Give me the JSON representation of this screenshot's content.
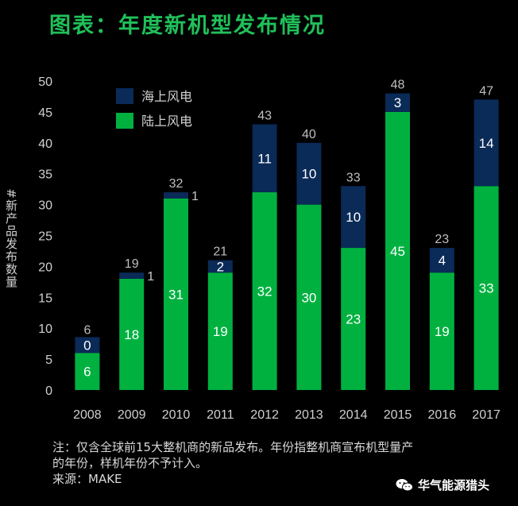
{
  "title": "图表：年度新机型发布情况",
  "chart_data": {
    "type": "bar",
    "stacked": true,
    "categories": [
      "2008",
      "2009",
      "2010",
      "2011",
      "2012",
      "2013",
      "2014",
      "2015",
      "2016",
      "2017"
    ],
    "series": [
      {
        "name": "陆上风电",
        "color": "#00b140",
        "values": [
          6,
          18,
          31,
          19,
          32,
          30,
          23,
          45,
          19,
          33
        ]
      },
      {
        "name": "海上风电",
        "color": "#0a2a57",
        "values": [
          0,
          1,
          1,
          2,
          11,
          10,
          10,
          3,
          4,
          14
        ]
      }
    ],
    "totals": [
      6,
      19,
      32,
      21,
      43,
      40,
      33,
      48,
      23,
      47
    ],
    "segment_labels": {
      "onshore": [
        "6",
        "18",
        "31",
        "19",
        "32",
        "30",
        "23",
        "45",
        "19",
        "33"
      ],
      "offshore": [
        "0",
        "1",
        "1",
        "2",
        "11",
        "10",
        "10",
        "3",
        "4",
        "14"
      ]
    },
    "ylabel": "#新产品发布数量",
    "ylim": [
      0,
      50
    ],
    "yticks": [
      "0",
      "5",
      "10",
      "15",
      "20",
      "25",
      "30",
      "35",
      "40",
      "45",
      "50"
    ],
    "grid": false,
    "legend_position": "top-left"
  },
  "notes": [
    "注：仅含全球前15大整机商的新品发布。年份指整机商宣布机型量产",
    "的年份，样机年份不予计入。",
    "来源：MAKE"
  ],
  "brand": "华气能源猎头"
}
